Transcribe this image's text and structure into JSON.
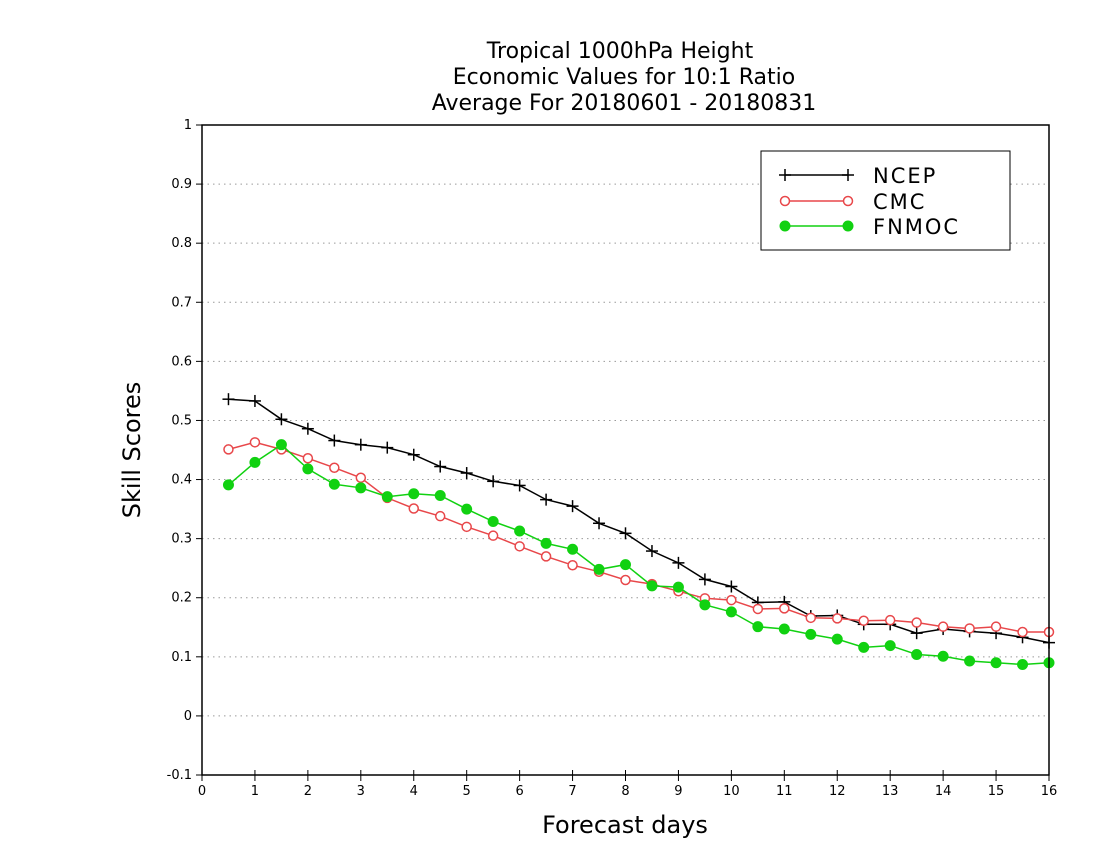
{
  "chart_data": {
    "type": "line",
    "title_lines": [
      "Tropical 1000hPa Height",
      "Economic Values for 10:1 Ratio",
      "Average For 20180601 - 20180831"
    ],
    "xlabel": "Forecast days",
    "ylabel": "Skill Scores",
    "xlim": [
      0,
      16
    ],
    "ylim": [
      -0.1,
      1
    ],
    "xticks": [
      0,
      1,
      2,
      3,
      4,
      5,
      6,
      7,
      8,
      9,
      10,
      11,
      12,
      13,
      14,
      15,
      16
    ],
    "xtick_labels": [
      "0",
      "1",
      "2",
      "3",
      "4",
      "5",
      "6",
      "7",
      "8",
      "9",
      "10",
      "11",
      "12",
      "13",
      "14",
      "15",
      "16"
    ],
    "yticks": [
      -0.1,
      0,
      0.1,
      0.2,
      0.3,
      0.4,
      0.5,
      0.6,
      0.7,
      0.8,
      0.9,
      1
    ],
    "ytick_labels": [
      "-0.1",
      "0",
      "0.1",
      "0.2",
      "0.3",
      "0.4",
      "0.5",
      "0.6",
      "0.7",
      "0.8",
      "0.9",
      "1"
    ],
    "grid": "horizontal dotted",
    "legend_position": "top-right",
    "x": [
      0.5,
      1.0,
      1.5,
      2.0,
      2.5,
      3.0,
      3.5,
      4.0,
      4.5,
      5.0,
      5.5,
      6.0,
      6.5,
      7.0,
      7.5,
      8.0,
      8.5,
      9.0,
      9.5,
      10.0,
      10.5,
      11.0,
      11.5,
      12.0,
      12.5,
      13.0,
      13.5,
      14.0,
      14.5,
      15.0,
      15.5,
      16.0
    ],
    "series": [
      {
        "name": "NCEP",
        "color": "#000000",
        "marker": "plus",
        "values": [
          0.536,
          0.533,
          0.502,
          0.486,
          0.466,
          0.459,
          0.454,
          0.442,
          0.422,
          0.411,
          0.397,
          0.39,
          0.366,
          0.355,
          0.326,
          0.309,
          0.279,
          0.259,
          0.231,
          0.219,
          0.192,
          0.193,
          0.169,
          0.17,
          0.155,
          0.155,
          0.14,
          0.147,
          0.143,
          0.14,
          0.133,
          0.124
        ]
      },
      {
        "name": "CMC",
        "color": "#e8474a",
        "marker": "open-circle",
        "values": [
          0.451,
          0.463,
          0.451,
          0.436,
          0.42,
          0.403,
          0.369,
          0.351,
          0.338,
          0.32,
          0.305,
          0.287,
          0.27,
          0.255,
          0.244,
          0.23,
          0.223,
          0.211,
          0.199,
          0.196,
          0.181,
          0.182,
          0.166,
          0.165,
          0.161,
          0.162,
          0.158,
          0.151,
          0.148,
          0.151,
          0.142,
          0.142
        ]
      },
      {
        "name": "FNMOC",
        "color": "#11d111",
        "marker": "filled-circle",
        "values": [
          0.391,
          0.429,
          0.459,
          0.418,
          0.392,
          0.386,
          0.371,
          0.376,
          0.373,
          0.35,
          0.329,
          0.313,
          0.292,
          0.282,
          0.248,
          0.256,
          0.22,
          0.218,
          0.188,
          0.176,
          0.151,
          0.147,
          0.138,
          0.13,
          0.116,
          0.119,
          0.104,
          0.101,
          0.093,
          0.09,
          0.087,
          0.09
        ]
      }
    ]
  }
}
